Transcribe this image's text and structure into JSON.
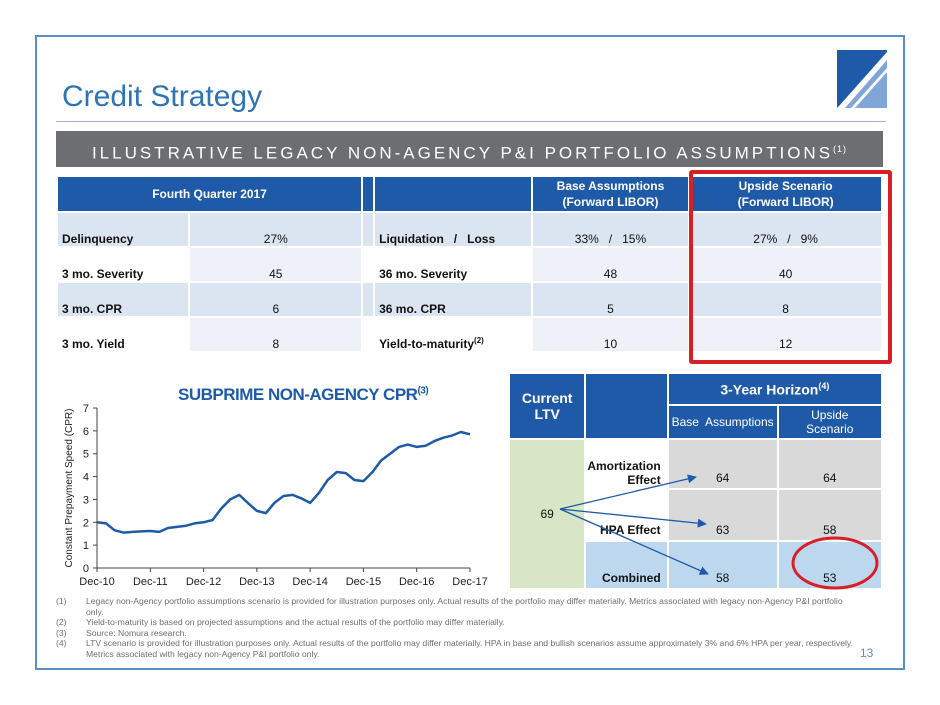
{
  "page": {
    "title": "Credit Strategy",
    "banner": "ILLUSTRATIVE LEGACY NON-AGENCY P&I PORTFOLIO ASSUMPTIONS",
    "banner_note": "(1)",
    "page_number": "13",
    "colors": {
      "brand_blue": "#1f5aa8",
      "title_blue": "#2e74b5",
      "highlight_red": "#d81f26"
    }
  },
  "assumptions_table": {
    "headers": {
      "quarter": "Fourth Quarter 2017",
      "base_line1": "Base Assumptions",
      "base_line2": "(Forward LIBOR)",
      "upside_line1": "Upside Scenario",
      "upside_line2": "(Forward LIBOR)"
    },
    "rows": [
      {
        "label": "Delinquency",
        "value": "27%",
        "label2": "Liquidation   /   Loss",
        "note2": "",
        "base": "33%   /   15%",
        "upside": "27%   /   9%"
      },
      {
        "label": "3 mo. Severity",
        "value": "45",
        "label2": "36 mo. Severity",
        "note2": "",
        "base": "48",
        "upside": "40"
      },
      {
        "label": "3 mo. CPR",
        "value": "6",
        "label2": "36 mo. CPR",
        "note2": "",
        "base": "5",
        "upside": "8"
      },
      {
        "label": "3 mo. Yield",
        "value": "8",
        "label2": "Yield-to-maturity",
        "note2": "(2)",
        "base": "10",
        "upside": "12"
      }
    ]
  },
  "chart": {
    "title": "SUBPRIME NON-AGENCY CPR",
    "title_note": "(3)"
  },
  "chart_data": {
    "type": "line",
    "title": "SUBPRIME NON-AGENCY CPR",
    "ylabel": "Constant Prepayment Speed (CPR)",
    "xlabel": "",
    "ylim": [
      0,
      7
    ],
    "yticks": [
      "0",
      "1",
      "2",
      "3",
      "4",
      "5",
      "6",
      "7"
    ],
    "xticks": [
      "Dec-10",
      "Dec-11",
      "Dec-12",
      "Dec-13",
      "Dec-14",
      "Dec-15",
      "Dec-16",
      "Dec-17"
    ],
    "series": [
      {
        "name": "CPR",
        "color": "#1f5aa8",
        "x": [
          0,
          0.17,
          0.33,
          0.5,
          0.67,
          0.83,
          1,
          1.17,
          1.33,
          1.5,
          1.67,
          1.83,
          2,
          2.17,
          2.33,
          2.5,
          2.67,
          2.83,
          3,
          3.17,
          3.33,
          3.5,
          3.67,
          3.83,
          4,
          4.17,
          4.33,
          4.5,
          4.67,
          4.83,
          5,
          5.17,
          5.33,
          5.5,
          5.67,
          5.83,
          6,
          6.17,
          6.33,
          6.5,
          6.67,
          6.83,
          7
        ],
        "values": [
          2.0,
          1.95,
          1.65,
          1.55,
          1.58,
          1.6,
          1.62,
          1.58,
          1.75,
          1.8,
          1.85,
          1.95,
          2.0,
          2.1,
          2.6,
          3.0,
          3.2,
          2.85,
          2.5,
          2.4,
          2.85,
          3.15,
          3.2,
          3.05,
          2.85,
          3.3,
          3.85,
          4.2,
          4.15,
          3.85,
          3.8,
          4.2,
          4.7,
          5.0,
          5.3,
          5.4,
          5.3,
          5.35,
          5.55,
          5.7,
          5.8,
          5.95,
          5.85
        ]
      }
    ]
  },
  "ltv_table": {
    "current_ltv_line1": "Current",
    "current_ltv_line2": "LTV",
    "horizon": "3-Year Horizon",
    "horizon_note": "(4)",
    "base": "Base  Assumptions",
    "upside_line1": "Upside",
    "upside_line2": "Scenario",
    "ltv_value": "69",
    "rows": [
      {
        "label_line1": "Amortization",
        "label_line2": "Effect",
        "base": "64",
        "upside": "64"
      },
      {
        "label_line1": "",
        "label_line2": "HPA Effect",
        "base": "63",
        "upside": "58"
      },
      {
        "label_line1": "",
        "label_line2": "Combined",
        "base": "58",
        "upside": "53"
      }
    ]
  },
  "footnotes": [
    {
      "n": "(1)",
      "text": "Legacy non-Agency portfolio assumptions scenario is provided for illustration purposes only. Actual results of the portfolio may differ materially. Metrics associated with legacy non-Agency P&I portfolio only."
    },
    {
      "n": "(2)",
      "text": "Yield-to-maturity is based on projected assumptions and the actual results of the portfolio may differ materially."
    },
    {
      "n": "(3)",
      "text": "Source: Nomura research."
    },
    {
      "n": "(4)",
      "text": "LTV scenario is provided for illustration purposes only. Actual results of the portfolio may differ materially. HPA in base and bullish scenarios assume approximately 3% and 6% HPA per year, respectively. Metrics associated with legacy non-Agency P&I portfolio only."
    }
  ]
}
